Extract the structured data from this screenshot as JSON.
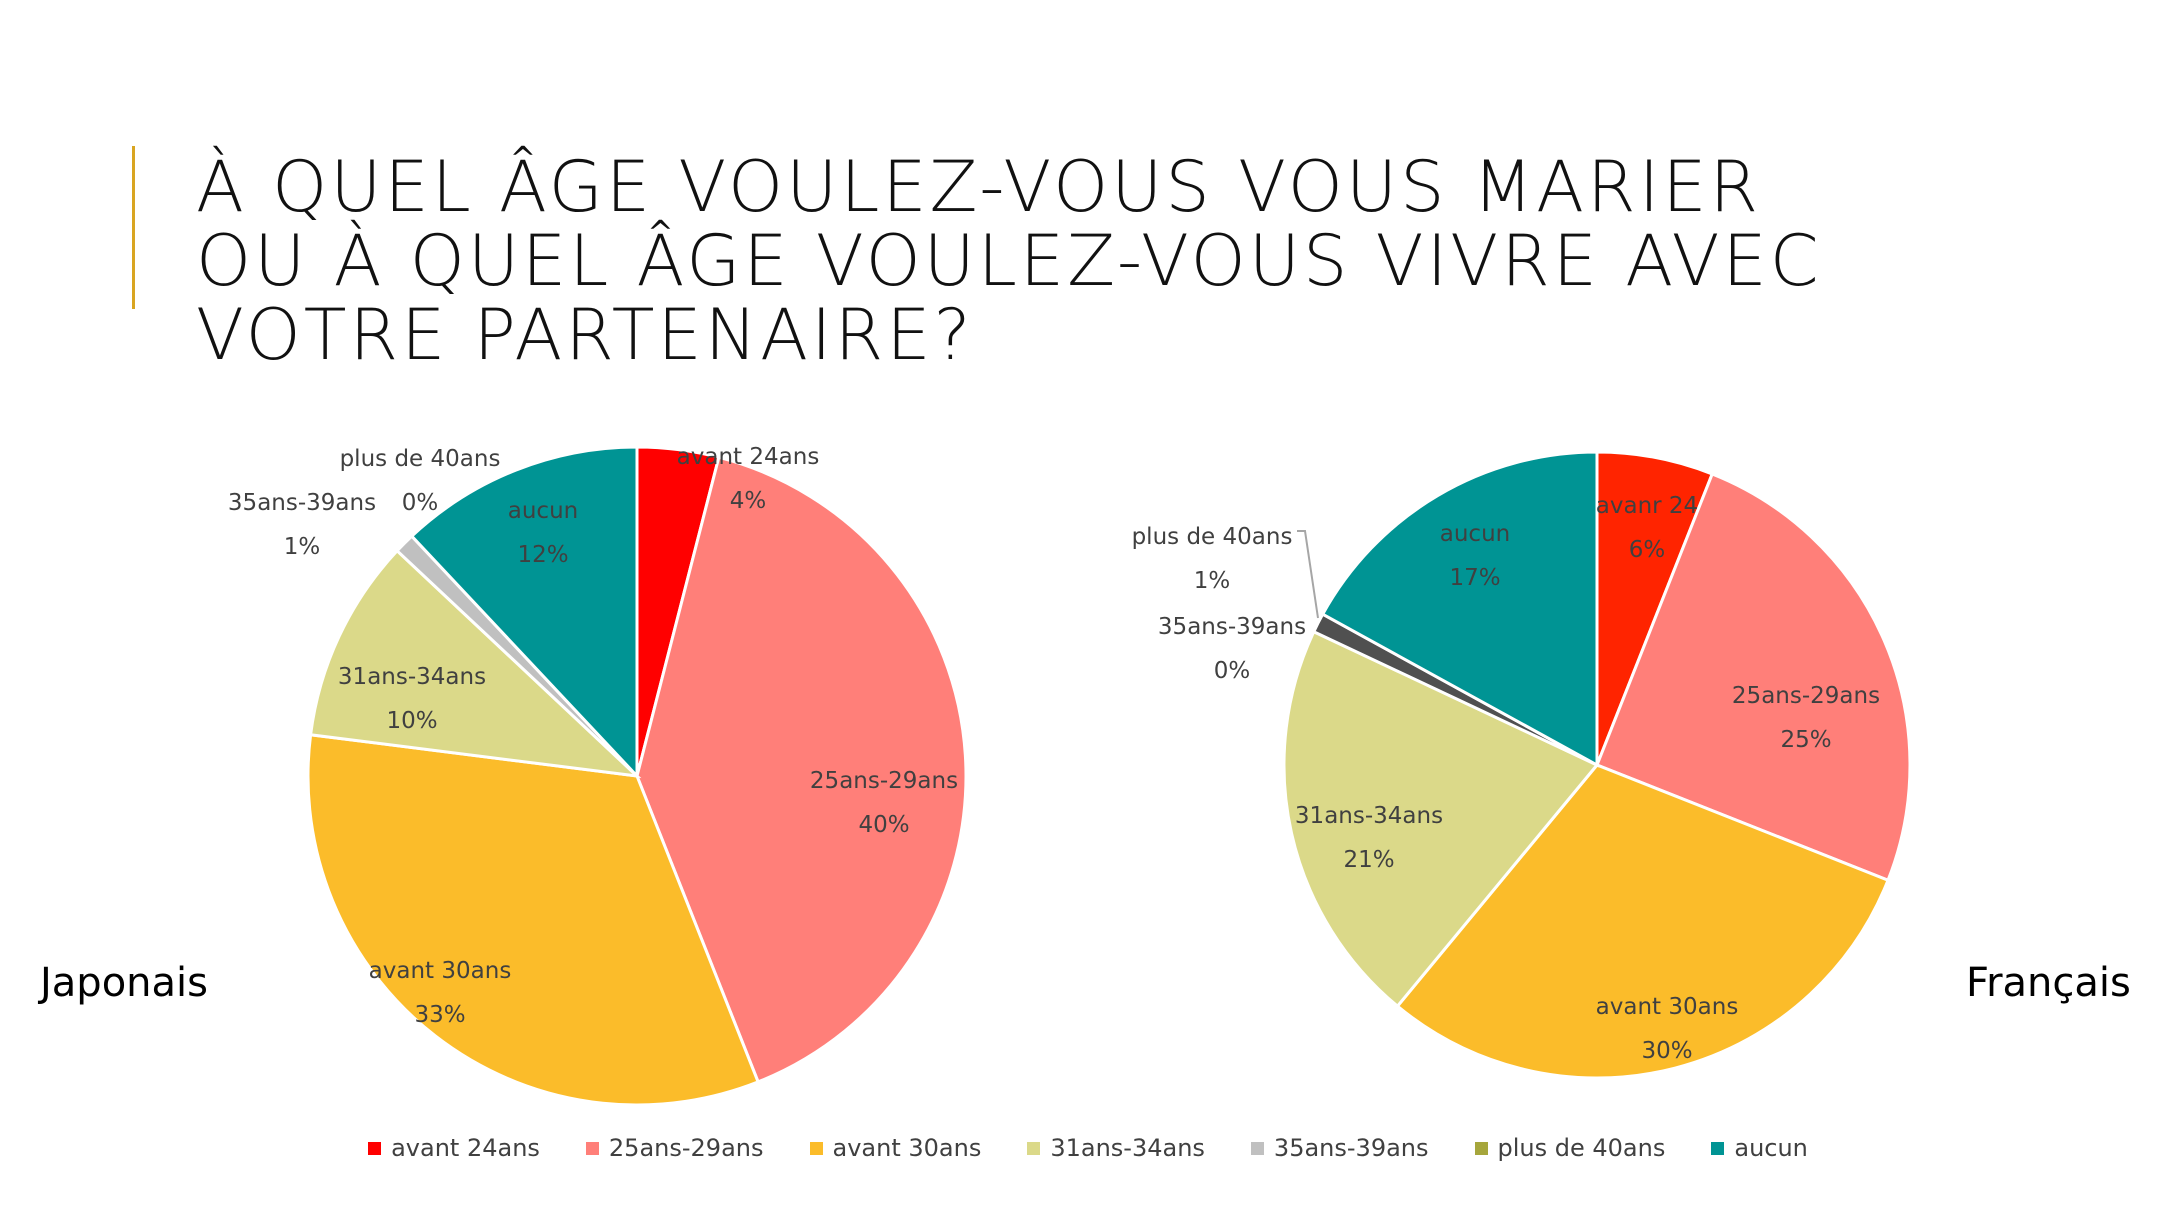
{
  "title": "À QUEL ÂGE VOULEZ-VOUS VOUS MARIER\nOU À QUEL ÂGE VOULEZ-VOUS VIVRE AVEC\nVOTRE PARTENAIRE?",
  "labels": {
    "left": "Japonais",
    "right": "Français"
  },
  "colors": {
    "accent": "#d9a521",
    "slice_border": "#ffffff",
    "leader": "#a6a6a6"
  },
  "legend": [
    {
      "label": "avant 24ans",
      "color": "#ff0000"
    },
    {
      "label": "25ans-29ans",
      "color": "#ff7f79"
    },
    {
      "label": "avant 30ans",
      "color": "#fbbc2a"
    },
    {
      "label": "31ans-34ans",
      "color": "#dbd989"
    },
    {
      "label": "35ans-39ans",
      "color": "#c0c0c0"
    },
    {
      "label": "plus de 40ans",
      "color": "#a6a63c"
    },
    {
      "label": "aucun",
      "color": "#009494"
    }
  ],
  "chart_data": [
    {
      "type": "pie",
      "name": "Japonais",
      "slices": [
        {
          "category": "avant 24ans",
          "label": "avant 24ans",
          "value": 4,
          "value_label": "4%",
          "color": "#ff0000"
        },
        {
          "category": "25ans-29ans",
          "label": "25ans-29ans",
          "value": 40,
          "value_label": "40%",
          "color": "#ff7f79"
        },
        {
          "category": "avant 30ans",
          "label": "avant 30ans",
          "value": 33,
          "value_label": "33%",
          "color": "#fbbc2a"
        },
        {
          "category": "31ans-34ans",
          "label": "31ans-34ans",
          "value": 10,
          "value_label": "10%",
          "color": "#dbd989"
        },
        {
          "category": "35ans-39ans",
          "label": "35ans-39ans",
          "value": 1,
          "value_label": "1%",
          "color": "#c0c0c0"
        },
        {
          "category": "plus de 40ans",
          "label": "plus de 40ans",
          "value": 0,
          "value_label": "0%",
          "color": "#a6a63c"
        },
        {
          "category": "aucun",
          "label": "aucun",
          "value": 12,
          "value_label": "12%",
          "color": "#009494"
        }
      ]
    },
    {
      "type": "pie",
      "name": "Français",
      "slices": [
        {
          "category": "avant 24ans",
          "label": "avanr 24",
          "value": 6,
          "value_label": "6%",
          "color": "#ff2400"
        },
        {
          "category": "25ans-29ans",
          "label": "25ans-29ans",
          "value": 25,
          "value_label": "25%",
          "color": "#ff7f79"
        },
        {
          "category": "avant 30ans",
          "label": "avant 30ans",
          "value": 30,
          "value_label": "30%",
          "color": "#fbbc2a"
        },
        {
          "category": "31ans-34ans",
          "label": "31ans-34ans",
          "value": 21,
          "value_label": "21%",
          "color": "#dbd989"
        },
        {
          "category": "35ans-39ans",
          "label": "35ans-39ans",
          "value": 0,
          "value_label": "0%",
          "color": "#a6a63c"
        },
        {
          "category": "plus de 40ans",
          "label": "plus de 40ans",
          "value": 1,
          "value_label": "1%",
          "color": "#505050"
        },
        {
          "category": "aucun",
          "label": "aucun",
          "value": 17,
          "value_label": "17%",
          "color": "#009494"
        }
      ]
    }
  ]
}
